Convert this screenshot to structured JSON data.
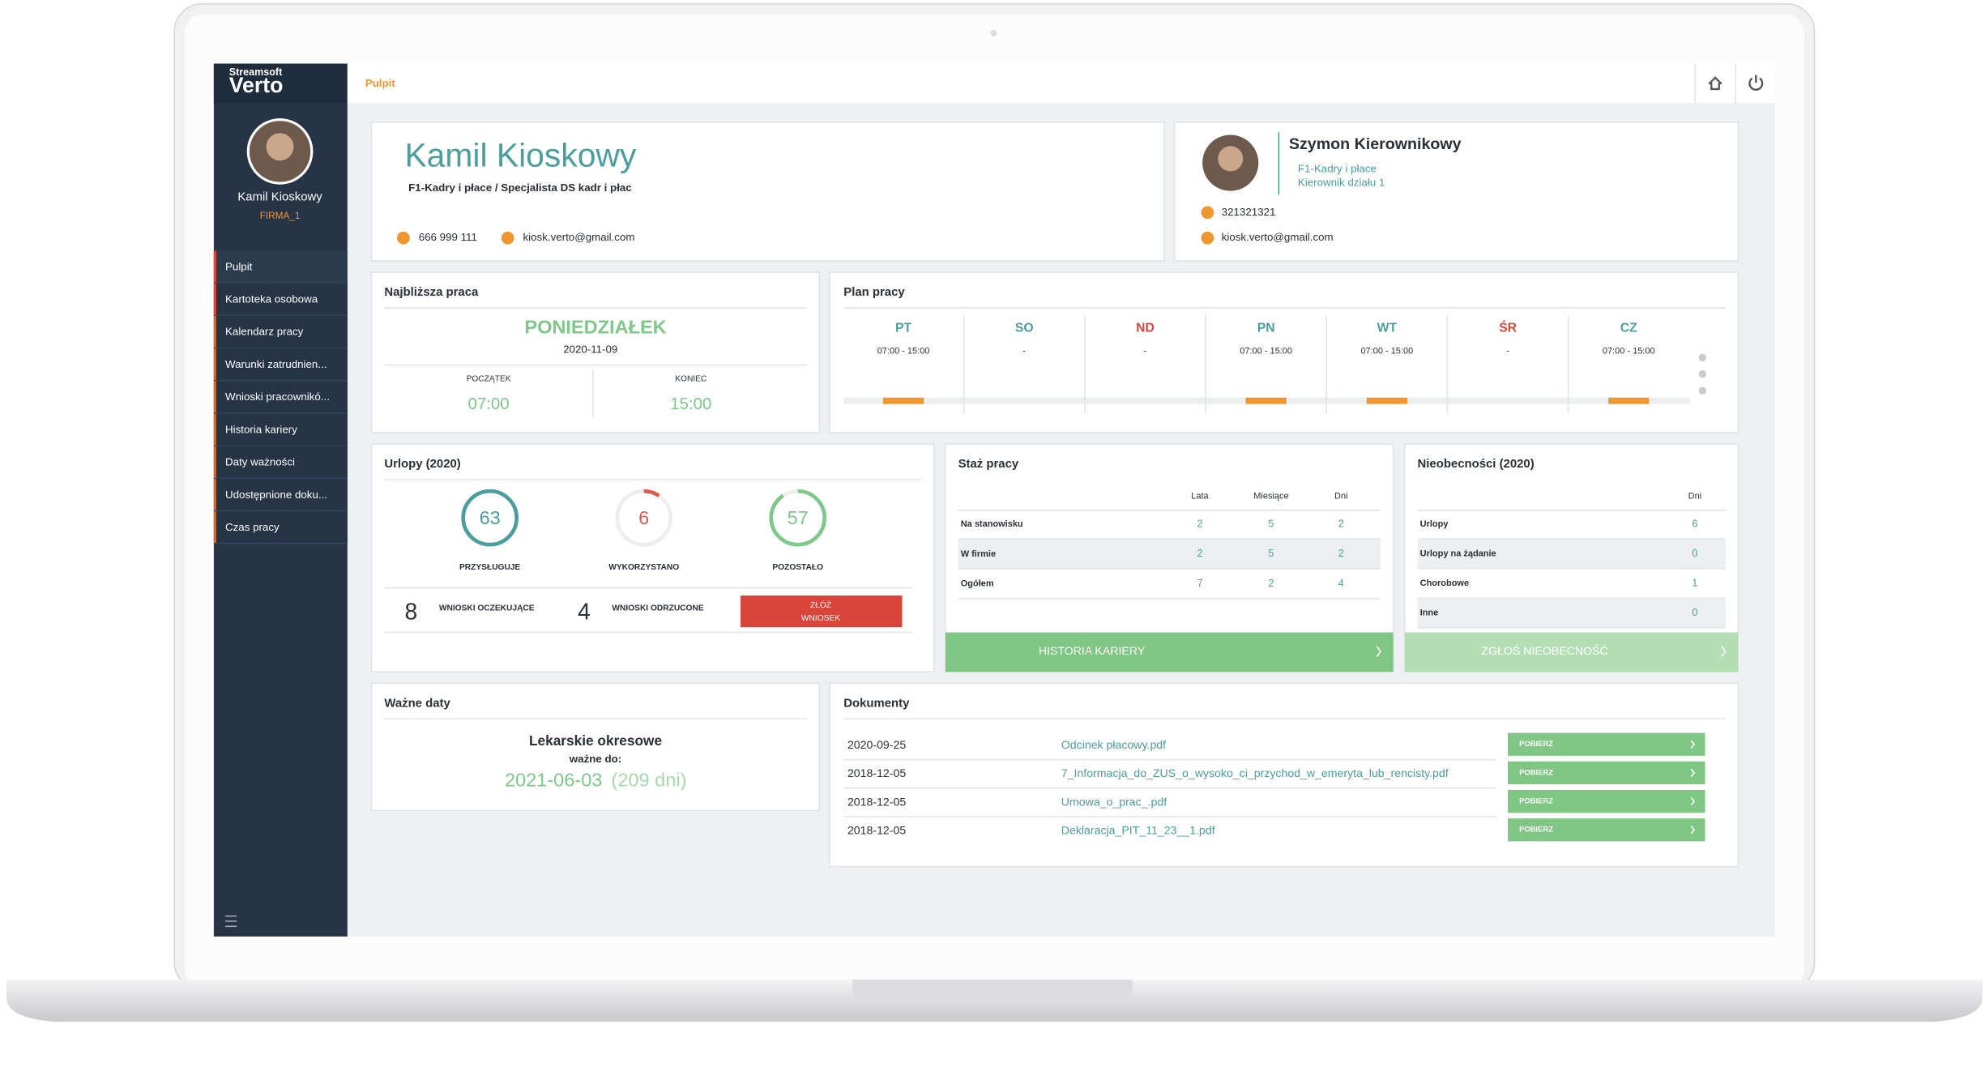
{
  "brand": {
    "top": "Streamsoft",
    "name": "Verto"
  },
  "user": {
    "name": "Kamil Kioskowy",
    "company": "FIRMA_1"
  },
  "menu": [
    "Pulpit",
    "Kartoteka osobowa",
    "Kalendarz pracy",
    "Warunki zatrudnien...",
    "Wnioski pracownikó...",
    "Historia kariery",
    "Daty ważności",
    "Udostępnione doku...",
    "Czas pracy"
  ],
  "breadcrumb": "Pulpit",
  "profile": {
    "name": "Kamil Kioskowy",
    "position": "F1-Kadry i płace / Specjalista DS kadr i płac",
    "phone": "666 999 111",
    "email": "kiosk.verto@gmail.com"
  },
  "manager": {
    "name": "Szymon Kierownikowy",
    "dept": "F1-Kadry i płace",
    "role": "Kierownik działu 1",
    "phone": "321321321",
    "email": "kiosk.verto@gmail.com"
  },
  "next_work": {
    "title": "Najbliższa praca",
    "day": "PONIEDZIAŁEK",
    "date": "2020-11-09",
    "start_label": "POCZĄTEK",
    "end_label": "KONIEC",
    "start": "07:00",
    "end": "15:00"
  },
  "plan": {
    "title": "Plan pracy",
    "days": [
      {
        "day": "PT",
        "hours": "07:00 - 15:00",
        "color": "#4a9e9c"
      },
      {
        "day": "SO",
        "hours": "-",
        "color": "#4a9e9c"
      },
      {
        "day": "ND",
        "hours": "-",
        "color": "#d9453b"
      },
      {
        "day": "PN",
        "hours": "07:00 - 15:00",
        "color": "#4a9e9c"
      },
      {
        "day": "WT",
        "hours": "07:00 - 15:00",
        "color": "#4a9e9c"
      },
      {
        "day": "ŚR",
        "hours": "-",
        "color": "#d9453b"
      },
      {
        "day": "CZ",
        "hours": "07:00 - 15:00",
        "color": "#4a9e9c"
      }
    ]
  },
  "leave": {
    "title": "Urlopy (2020)",
    "stats": [
      {
        "value": 63,
        "label": "PRZYSŁUGUJE",
        "color": "#4a9e9c"
      },
      {
        "value": 6,
        "label": "WYKORZYSTANO",
        "color": "#e05b4f"
      },
      {
        "value": 57,
        "label": "POZOSTAŁO",
        "color": "#7dc88a"
      }
    ],
    "pending": 8,
    "pending_label": "WNIOSKI OCZEKUJĄCE",
    "rejected": 4,
    "rejected_label": "WNIOSKI ODRZUCONE",
    "button": [
      "ZŁÓŻ",
      "WNIOSEK"
    ]
  },
  "tenure": {
    "title": "Staż pracy",
    "columns": [
      "Lata",
      "Miesiące",
      "Dni"
    ],
    "rows": [
      [
        "Na stanowisku",
        2,
        5,
        2
      ],
      [
        "W firmie",
        2,
        5,
        2
      ],
      [
        "Ogółem",
        7,
        2,
        4
      ]
    ],
    "button": "HISTORIA KARIERY"
  },
  "absences": {
    "title": "Nieobecności (2020)",
    "columns": [
      "Dni"
    ],
    "rows": [
      [
        "Urlopy",
        6
      ],
      [
        "Urlopy na żądanie",
        0
      ],
      [
        "Chorobowe",
        1
      ],
      [
        "Inne",
        0
      ]
    ],
    "button": "ZGŁOŚ NIEOBECNOŚĆ"
  },
  "dates": {
    "title": "Ważne daty",
    "name": "Lekarskie okresowe",
    "valid_label": "ważne do:",
    "date": "2021-06-03",
    "remaining": "(209 dni)"
  },
  "documents": {
    "title": "Dokumenty",
    "button": "POBIERZ",
    "rows": [
      {
        "date": "2020-09-25",
        "file": "Odcinek płacowy.pdf"
      },
      {
        "date": "2018-12-05",
        "file": "7_Informacja_do_ZUS_o_wysoko_ci_przychod_w_emeryta_lub_rencisty.pdf"
      },
      {
        "date": "2018-12-05",
        "file": "Umowa_o_prac_.pdf"
      },
      {
        "date": "2018-12-05",
        "file": "Deklaracja_PIT_11_23__1.pdf"
      }
    ]
  }
}
